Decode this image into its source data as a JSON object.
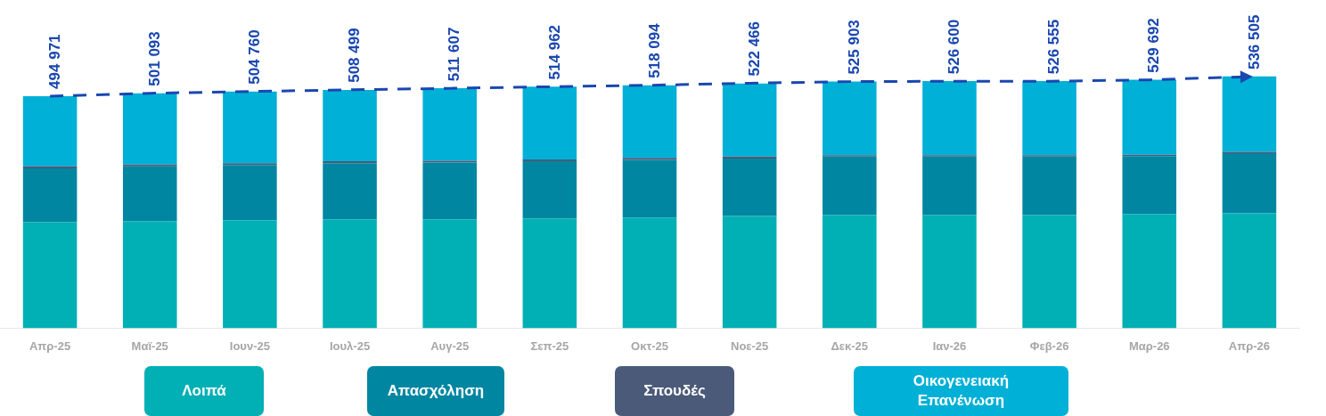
{
  "chart_data": {
    "type": "bar",
    "stacked": true,
    "tick_labels": "x",
    "grid": false,
    "legend": "bottom",
    "categories": [
      "Απρ-25",
      "Μαϊ-25",
      "Ιουν-25",
      "Ιουλ-25",
      "Αυγ-25",
      "Σεπ-25",
      "Οκτ-25",
      "Νοε-25",
      "Δεκ-25",
      "Ιαν-26",
      "Φεβ-26",
      "Μαρ-26",
      "Απρ-26"
    ],
    "series": [
      {
        "name": "Λοιπά",
        "color": "#00b0b4",
        "values": [
          226000,
          228000,
          230000,
          232000,
          232000,
          234000,
          236000,
          239000,
          241000,
          241000,
          241000,
          243000,
          245000
        ]
      },
      {
        "name": "Απασχόληση",
        "color": "#0086a1",
        "values": [
          115000,
          117000,
          118000,
          120000,
          121000,
          122000,
          123000,
          123000,
          125000,
          125000,
          125000,
          124000,
          128000
        ]
      },
      {
        "name": "Σπουδές",
        "color": "#4a5a78",
        "values": [
          4000,
          4000,
          4000,
          4000,
          4000,
          4000,
          4000,
          4000,
          3000,
          3000,
          3000,
          3000,
          3000
        ]
      },
      {
        "name": "Οικογενειακή Επανένωση",
        "color": "#00b0d6",
        "values": [
          150000,
          152000,
          153000,
          152000,
          155000,
          155000,
          155000,
          156000,
          157000,
          158000,
          158000,
          160000,
          161000
        ]
      },
      {
        "type": "line",
        "color": "#1a47b0",
        "line_style": "dashed",
        "marker": "none",
        "values": [
          494971,
          501093,
          504760,
          508499,
          511607,
          514962,
          518094,
          522466,
          525903,
          526600,
          526555,
          529692,
          536505
        ],
        "value_labels": [
          "494 971",
          "501 093",
          "504 760",
          "508 499",
          "511 607",
          "514 962",
          "518 094",
          "522 466",
          "525 903",
          "526 600",
          "526 555",
          "529 692",
          "536 505"
        ]
      }
    ]
  }
}
